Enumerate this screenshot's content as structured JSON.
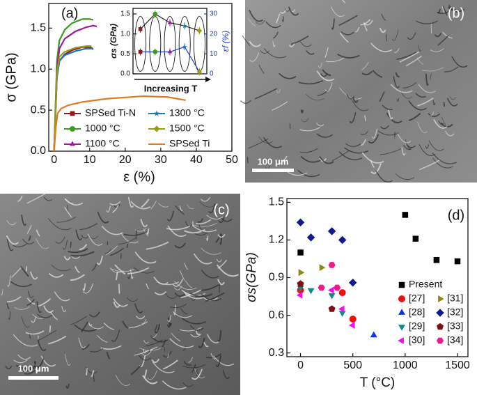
{
  "chart_data": [
    {
      "type": "line",
      "panel_label": "(a)",
      "x_label": "ε (%)",
      "y_label": "σ (GPa)",
      "xlim": [
        -1.5,
        50
      ],
      "ylim": [
        0,
        1.8
      ],
      "xticks": [
        0,
        10,
        20,
        30,
        40,
        50
      ],
      "yticks": [
        {
          "value": 0,
          "label": "0.0"
        },
        {
          "value": 0.5,
          "label": "0.5"
        },
        {
          "value": 1,
          "label": "1.0"
        },
        {
          "value": 1.5,
          "label": "1.5"
        }
      ],
      "series": [
        {
          "name": "SPSed Ti-N",
          "color": "#8b1a1a",
          "marker": "square",
          "x": [
            0,
            0.8,
            1.5,
            3,
            5,
            8,
            10.5,
            11
          ],
          "values": [
            0,
            0.9,
            1.1,
            1.18,
            1.23,
            1.27,
            1.26,
            1.24
          ]
        },
        {
          "name": "1000 °C",
          "color": "#3c9a1e",
          "marker": "circle",
          "x": [
            0,
            0.8,
            1.5,
            3,
            5,
            8,
            10,
            11
          ],
          "values": [
            0,
            1.1,
            1.35,
            1.48,
            1.56,
            1.61,
            1.61,
            1.6
          ]
        },
        {
          "name": "1100 °C",
          "color": "#9a1a9a",
          "marker": "triangle-up",
          "x": [
            0,
            0.8,
            1.5,
            3,
            6,
            9,
            11,
            12
          ],
          "values": [
            0,
            1.0,
            1.25,
            1.37,
            1.46,
            1.51,
            1.53,
            1.52
          ]
        },
        {
          "name": "1300 °C",
          "color": "#1a7ab4",
          "marker": "star",
          "x": [
            0,
            0.8,
            1.5,
            3,
            6,
            9,
            11
          ],
          "values": [
            0,
            0.9,
            1.1,
            1.17,
            1.22,
            1.25,
            1.25
          ]
        },
        {
          "name": "1500 °C",
          "color": "#9a9a1a",
          "marker": "diamond",
          "x": [
            0,
            0.8,
            1.5,
            3,
            6,
            9,
            10.5
          ],
          "values": [
            0,
            0.95,
            1.15,
            1.21,
            1.26,
            1.28,
            1.28
          ]
        },
        {
          "name": "SPSed Ti",
          "color": "#e07a20",
          "marker": "none",
          "x": [
            0,
            0.5,
            1,
            2,
            4,
            8,
            15,
            25,
            32,
            37
          ],
          "values": [
            0,
            0.3,
            0.46,
            0.52,
            0.56,
            0.6,
            0.64,
            0.67,
            0.66,
            0.62
          ]
        }
      ]
    },
    {
      "type": "line",
      "x_label": "Increasing T",
      "y_label": "σs (GPa)",
      "y2_label": "εf (%)",
      "categories": [
        null,
        null,
        null,
        null,
        null
      ],
      "ylim": [
        0,
        1.64
      ],
      "y2lim": [
        0,
        32.8
      ],
      "yticks": [
        {
          "value": 0,
          "label": "0.0"
        },
        {
          "value": 0.5,
          "label": "0.5"
        },
        {
          "value": 1,
          "label": "1.0"
        },
        {
          "value": 1.5,
          "label": "1.5"
        }
      ],
      "y2ticks": [
        0,
        10,
        20,
        30
      ],
      "series": [
        {
          "color": "#222222",
          "values": [
            1.12,
            1.5,
            1.28,
            1.2,
            1.08
          ],
          "point_colors": [
            "#8b1a1a",
            "#3c9a1e",
            "#9a1a9a",
            "#1a7ab4",
            "#9a9a1a"
          ],
          "point_markers": [
            "square",
            "circle",
            "triangle-up",
            "star",
            "diamond"
          ]
        },
        {
          "color": "#1a3ad0",
          "axis": "y2",
          "values": [
            11,
            11,
            11,
            13.5,
            1
          ],
          "point_colors": [
            "#8b1a1a",
            "#3c9a1e",
            "#9a1a9a",
            "#1a7ab4",
            "#9a9a1a"
          ],
          "point_markers": [
            "square",
            "circle",
            "triangle-up",
            "star",
            "diamond"
          ]
        }
      ]
    },
    {
      "type": "scatter",
      "panel_label": "(d)",
      "x_label": "T (°C)",
      "y_label": "σs(GPa)",
      "xlim": [
        -130,
        1600
      ],
      "ylim": [
        0.27,
        1.53
      ],
      "xticks": [
        0,
        500,
        1000,
        1500
      ],
      "yticks": [
        0.3,
        0.6,
        0.9,
        1.2,
        1.5
      ],
      "series": [
        {
          "name": "Present",
          "color": "#000000",
          "marker": "square",
          "x": [
            0,
            1000,
            1100,
            1300,
            1500
          ],
          "values": [
            1.1,
            1.4,
            1.21,
            1.04,
            1.03
          ]
        },
        {
          "name": "[27]",
          "color": "#f01010",
          "marker": "circle",
          "x": [
            0,
            400,
            500
          ],
          "values": [
            0.8,
            0.78,
            0.57
          ]
        },
        {
          "name": "[28]",
          "color": "#1030f0",
          "marker": "triangle-up",
          "x": [
            700
          ],
          "values": [
            0.44
          ]
        },
        {
          "name": "[29]",
          "color": "#108a8a",
          "marker": "triangle-down",
          "x": [
            0,
            100,
            300,
            400
          ],
          "values": [
            0.82,
            0.8,
            0.76,
            0.62
          ]
        },
        {
          "name": "[30]",
          "color": "#f010f0",
          "marker": "triangle-left",
          "x": [
            0,
            300,
            400,
            500
          ],
          "values": [
            0.76,
            0.8,
            0.65,
            0.52
          ]
        },
        {
          "name": "[31]",
          "color": "#8a8a10",
          "marker": "triangle-right",
          "x": [
            0,
            200
          ],
          "values": [
            0.94,
            0.98
          ]
        },
        {
          "name": "[32]",
          "color": "#101a8a",
          "marker": "diamond",
          "x": [
            0,
            100,
            300,
            400,
            500
          ],
          "values": [
            1.34,
            1.22,
            1.27,
            1.2,
            0.86
          ]
        },
        {
          "name": "[33]",
          "color": "#7a1010",
          "marker": "pentagon",
          "x": [
            0,
            300
          ],
          "values": [
            0.85,
            0.65
          ]
        },
        {
          "name": "[34]",
          "color": "#f01a8a",
          "marker": "hexagon",
          "x": [
            200,
            300,
            350
          ],
          "values": [
            0.82,
            1.0,
            0.82
          ]
        }
      ]
    }
  ],
  "images": [
    {
      "label": "(b)",
      "scale_bar": "100 μm"
    },
    {
      "label": "(c)",
      "scale_bar": "100 μm"
    }
  ]
}
